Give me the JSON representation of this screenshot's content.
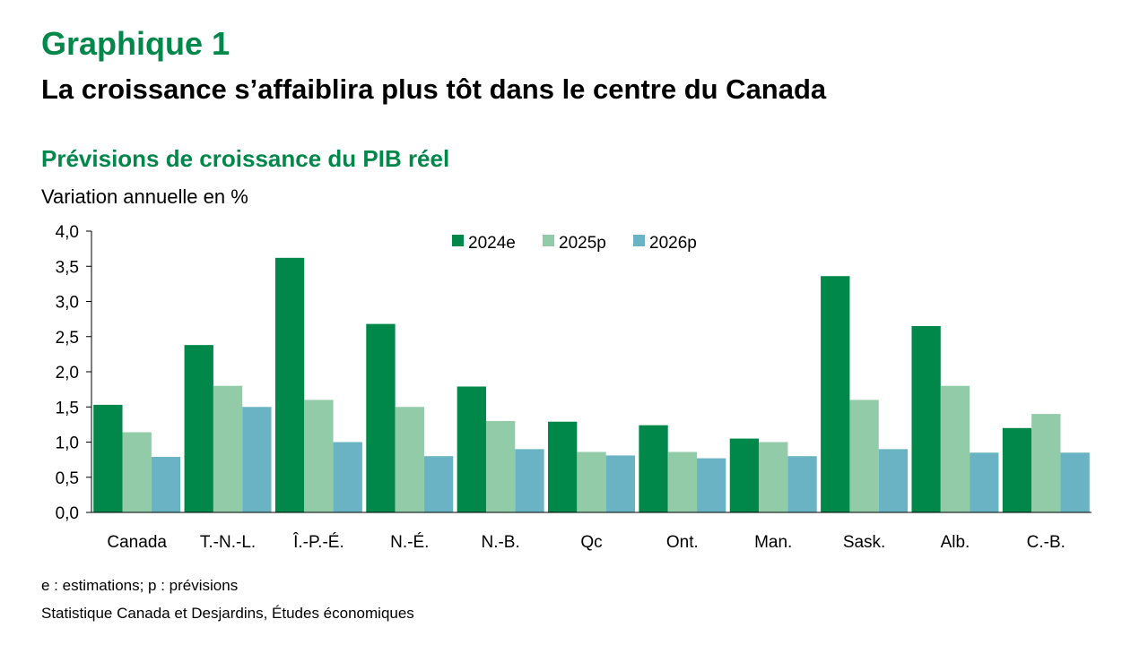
{
  "header": {
    "heading": "Graphique 1",
    "subheading": "La croissance s’affaiblira plus tôt dans le centre du Canada"
  },
  "chart_data": {
    "type": "bar",
    "title": "Prévisions de croissance du PIB réel",
    "ylabel": "Variation annuelle en %",
    "xlabel": "",
    "ylim": [
      0,
      4.0
    ],
    "yticks": [
      "0,0",
      "0,5",
      "1,0",
      "1,5",
      "2,0",
      "2,5",
      "3,0",
      "3,5",
      "4,0"
    ],
    "grid": false,
    "legend_position": "top-center",
    "categories": [
      "Canada",
      "T.-N.-L.",
      "Î.-P.-É.",
      "N.-É.",
      "N.-B.",
      "Qc",
      "Ont.",
      "Man.",
      "Sask.",
      "Alb.",
      "C.-B."
    ],
    "series": [
      {
        "name": "2024e",
        "color": "#00874a",
        "values": [
          1.53,
          2.38,
          3.62,
          2.68,
          1.79,
          1.29,
          1.24,
          1.05,
          3.36,
          2.65,
          1.2
        ]
      },
      {
        "name": "2025p",
        "color": "#91cba8",
        "values": [
          1.14,
          1.8,
          1.6,
          1.5,
          1.3,
          0.86,
          0.86,
          1.0,
          1.6,
          1.8,
          1.4
        ]
      },
      {
        "name": "2026p",
        "color": "#69b3c5",
        "values": [
          0.79,
          1.5,
          1.0,
          0.8,
          0.9,
          0.81,
          0.77,
          0.8,
          0.9,
          0.85,
          0.85
        ]
      }
    ]
  },
  "footer": {
    "note": "e : estimations; p : prévisions",
    "source": "Statistique Canada et Desjardins, Études économiques"
  }
}
